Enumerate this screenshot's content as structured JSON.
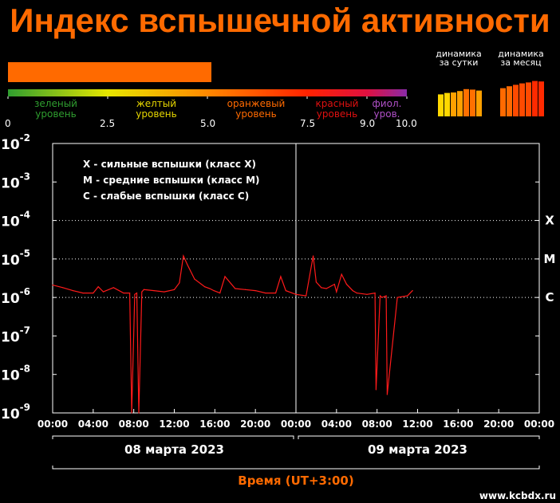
{
  "title": "Индекс вспышечной активности",
  "index_value": 5.1,
  "scale": {
    "levels": [
      {
        "name": "зеленый",
        "name2": "уровень",
        "color": "#2f9e2f"
      },
      {
        "name": "желтый",
        "name2": "уровень",
        "color": "#e6d600"
      },
      {
        "name": "оранжевый",
        "name2": "уровень",
        "color": "#ff6a00"
      },
      {
        "name": "красный",
        "name2": "уровень",
        "color": "#e01010"
      },
      {
        "name": "фиол.",
        "name2": "уров.",
        "color": "#9b30b0"
      }
    ],
    "ticks": [
      "0",
      "2.5",
      "5.0",
      "7.5",
      "9.0",
      "10.0"
    ]
  },
  "dynamics": {
    "day_label_1": "динамика",
    "day_label_2": "за сутки",
    "month_label_1": "динамика",
    "month_label_2": "за месяц",
    "day_values": [
      4.6,
      4.9,
      5.0,
      5.3,
      5.7,
      5.6,
      5.4
    ],
    "month_values": [
      5.9,
      6.3,
      6.6,
      6.9,
      7.1,
      7.4,
      7.3
    ]
  },
  "chart_data": {
    "type": "line",
    "yscale": "log",
    "ylim": [
      1e-09,
      0.01
    ],
    "y_tick_labels": [
      "10-9",
      "10-8",
      "10-7",
      "10-6",
      "10-5",
      "10-4",
      "10-3",
      "10-2"
    ],
    "x_tick_labels": [
      "00:00",
      "04:00",
      "08:00",
      "12:00",
      "16:00",
      "20:00",
      "00:00",
      "04:00",
      "08:00",
      "12:00",
      "16:00",
      "20:00",
      "00:00"
    ],
    "xlim_hours": [
      0,
      48
    ],
    "class_lines": [
      {
        "label": "X",
        "value": 0.0001
      },
      {
        "label": "M",
        "value": 1e-05
      },
      {
        "label": "C",
        "value": 1e-06
      }
    ],
    "legend": [
      "X - сильные вспышки (класс X)",
      "M - средние вспышки (класс M)",
      "C - слабые вспышки (класс C)"
    ],
    "dates": [
      "08 марта 2023",
      "09 марта 2023"
    ],
    "xlabel": "Время (UT+3:00)",
    "series_color": "#ff1a1a",
    "x": [
      0,
      1,
      2,
      3,
      4,
      4.5,
      5,
      6,
      7,
      7.6,
      7.8,
      8.1,
      8.3,
      8.5,
      8.8,
      9,
      10,
      11,
      12,
      12.5,
      12.9,
      13.3,
      14,
      15,
      15.5,
      15.9,
      16.5,
      17,
      18,
      19,
      20,
      21,
      22,
      22.5,
      23,
      24,
      25,
      25.7,
      26,
      26.5,
      27,
      27.8,
      28,
      28.5,
      29,
      29.6,
      30,
      31,
      31.8,
      31.9,
      32.3,
      32.5,
      32.9,
      33,
      34,
      35,
      35.5
    ],
    "y": [
      2.1e-06,
      1.8e-06,
      1.5e-06,
      1.3e-06,
      1.3e-06,
      1.9e-06,
      1.4e-06,
      1.8e-06,
      1.3e-06,
      1.3e-06,
      1e-09,
      1.2e-06,
      1.3e-06,
      1e-09,
      1.4e-06,
      1.6e-06,
      1.5e-06,
      1.4e-06,
      1.6e-06,
      2.4e-06,
      1.2e-05,
      7e-06,
      3e-06,
      1.9e-06,
      1.7e-06,
      1.5e-06,
      1.3e-06,
      3.5e-06,
      1.7e-06,
      1.6e-06,
      1.5e-06,
      1.3e-06,
      1.3e-06,
      3.5e-06,
      1.5e-06,
      1.2e-06,
      1.1e-06,
      1.2e-05,
      2.5e-06,
      1.8e-06,
      1.7e-06,
      2.2e-06,
      1.4e-06,
      4e-06,
      2.2e-06,
      1.5e-06,
      1.3e-06,
      1.2e-06,
      1.3e-06,
      4e-09,
      1.1e-06,
      1e-06,
      1.1e-06,
      3e-09,
      1e-06,
      1.1e-06,
      1.5e-06
    ]
  },
  "footer": {
    "site": "www.kcbdx.ru"
  }
}
